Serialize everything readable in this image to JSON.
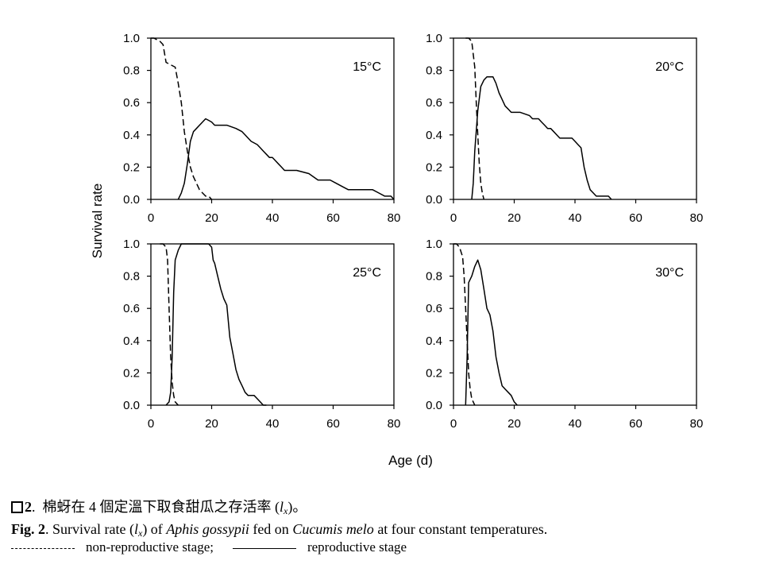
{
  "figure": {
    "ylabel": "Survival rate",
    "xlabel": "Age (d)",
    "xticks": [
      "0",
      "20",
      "40",
      "60",
      "80"
    ],
    "yticks": [
      "0.0",
      "0.2",
      "0.4",
      "0.6",
      "0.8",
      "1.0"
    ]
  },
  "chart_data": [
    {
      "type": "line",
      "title": "15°C",
      "xlim": [
        0,
        80
      ],
      "ylim": [
        0,
        1.0
      ],
      "series": [
        {
          "style": "dashed",
          "x": [
            0,
            1,
            3,
            4,
            5,
            6,
            8,
            9,
            10,
            11,
            12,
            13,
            14,
            15,
            16,
            17,
            18,
            19,
            20
          ],
          "y": [
            1.0,
            1.0,
            0.98,
            0.96,
            0.85,
            0.84,
            0.82,
            0.72,
            0.6,
            0.42,
            0.3,
            0.2,
            0.14,
            0.1,
            0.06,
            0.04,
            0.02,
            0.02,
            0.0
          ]
        },
        {
          "style": "solid",
          "x": [
            9,
            10,
            11,
            12,
            13,
            14,
            15,
            16,
            17,
            18,
            19,
            20,
            21,
            23,
            25,
            28,
            30,
            31,
            33,
            35,
            36,
            37,
            38,
            39,
            40,
            41,
            42,
            43,
            44,
            46,
            48,
            52,
            55,
            57,
            59,
            61,
            63,
            65,
            67,
            73,
            75,
            77,
            79,
            80
          ],
          "y": [
            0.0,
            0.04,
            0.1,
            0.22,
            0.36,
            0.42,
            0.44,
            0.46,
            0.48,
            0.5,
            0.49,
            0.48,
            0.46,
            0.46,
            0.46,
            0.44,
            0.42,
            0.4,
            0.36,
            0.34,
            0.32,
            0.3,
            0.28,
            0.26,
            0.26,
            0.24,
            0.22,
            0.2,
            0.18,
            0.18,
            0.18,
            0.16,
            0.12,
            0.12,
            0.12,
            0.1,
            0.08,
            0.06,
            0.06,
            0.06,
            0.04,
            0.02,
            0.02,
            0.0
          ]
        }
      ]
    },
    {
      "type": "line",
      "title": "20°C",
      "xlim": [
        0,
        80
      ],
      "ylim": [
        0,
        1.0
      ],
      "series": [
        {
          "style": "dashed",
          "x": [
            4,
            5,
            6,
            7,
            7.5,
            8,
            8.5,
            9,
            9.5,
            10
          ],
          "y": [
            1.0,
            1.0,
            0.98,
            0.82,
            0.6,
            0.4,
            0.22,
            0.1,
            0.04,
            0.0
          ]
        },
        {
          "style": "solid",
          "x": [
            6,
            6.5,
            7,
            8,
            9,
            10,
            11,
            12,
            13,
            14,
            15,
            16,
            17,
            18,
            19,
            20,
            22,
            25,
            26,
            28,
            29,
            30,
            31,
            32,
            33,
            34,
            35,
            36,
            39,
            40,
            41,
            42,
            43,
            44,
            45,
            46,
            47,
            48,
            51,
            52
          ],
          "y": [
            0.0,
            0.1,
            0.3,
            0.55,
            0.7,
            0.74,
            0.76,
            0.76,
            0.76,
            0.72,
            0.66,
            0.62,
            0.58,
            0.56,
            0.54,
            0.54,
            0.54,
            0.52,
            0.5,
            0.5,
            0.48,
            0.46,
            0.44,
            0.44,
            0.42,
            0.4,
            0.38,
            0.38,
            0.38,
            0.36,
            0.34,
            0.32,
            0.2,
            0.12,
            0.06,
            0.04,
            0.02,
            0.02,
            0.02,
            0.0
          ]
        }
      ]
    },
    {
      "type": "line",
      "title": "25°C",
      "xlim": [
        0,
        80
      ],
      "ylim": [
        0,
        1.0
      ],
      "series": [
        {
          "style": "dashed",
          "x": [
            3,
            4,
            5,
            5.5,
            6,
            6.5,
            7,
            7.5,
            8,
            9
          ],
          "y": [
            1.0,
            1.0,
            0.98,
            0.9,
            0.6,
            0.3,
            0.14,
            0.06,
            0.02,
            0.0
          ]
        },
        {
          "style": "solid",
          "x": [
            5,
            6,
            6.5,
            7,
            7.5,
            8,
            9,
            10,
            11,
            12,
            14,
            16,
            18,
            19,
            20,
            20.5,
            21,
            22,
            23,
            24,
            25,
            26,
            27,
            28,
            29,
            30,
            31,
            32,
            33,
            34,
            35,
            36,
            37,
            38
          ],
          "y": [
            0.0,
            0.02,
            0.08,
            0.3,
            0.7,
            0.9,
            0.96,
            1.0,
            1.0,
            1.0,
            1.0,
            1.0,
            1.0,
            1.0,
            0.98,
            0.9,
            0.88,
            0.8,
            0.72,
            0.66,
            0.62,
            0.42,
            0.32,
            0.22,
            0.16,
            0.12,
            0.08,
            0.06,
            0.06,
            0.06,
            0.04,
            0.02,
            0.0,
            0.0
          ]
        }
      ]
    },
    {
      "type": "line",
      "title": "30°C",
      "xlim": [
        0,
        80
      ],
      "ylim": [
        0,
        1.0
      ],
      "series": [
        {
          "style": "dashed",
          "x": [
            0,
            1,
            2,
            3,
            3.5,
            4,
            4.5,
            5,
            5.5,
            6,
            6.5,
            7
          ],
          "y": [
            1.0,
            1.0,
            0.98,
            0.92,
            0.8,
            0.6,
            0.4,
            0.2,
            0.1,
            0.04,
            0.02,
            0.0
          ]
        },
        {
          "style": "solid",
          "x": [
            4,
            4.5,
            5,
            6,
            7,
            8,
            9,
            10,
            11,
            12,
            13,
            14,
            15,
            16,
            17,
            18,
            19,
            20,
            21
          ],
          "y": [
            0.0,
            0.3,
            0.76,
            0.8,
            0.86,
            0.9,
            0.84,
            0.72,
            0.6,
            0.56,
            0.46,
            0.3,
            0.2,
            0.12,
            0.1,
            0.08,
            0.06,
            0.02,
            0.0
          ]
        }
      ]
    }
  ],
  "caption": {
    "zh_label": "2",
    "zh_text": "棉蚜在 4 個定溫下取食甜瓜之存活率",
    "zh_paren_open": "(",
    "zh_symbol": "l",
    "zh_sub": "x",
    "zh_paren_close": ")。",
    "en_label": "Fig. 2",
    "en_text1": ". Survival rate (",
    "en_symbol": "l",
    "en_sub": "x",
    "en_text2": ") of ",
    "en_species": "Aphis gossypii",
    "en_text3": " fed on ",
    "en_host": "Cucumis melo",
    "en_text4": " at four constant temperatures.",
    "legend_nonrepro": "non-reproductive stage;",
    "legend_repro": "reproductive stage"
  }
}
